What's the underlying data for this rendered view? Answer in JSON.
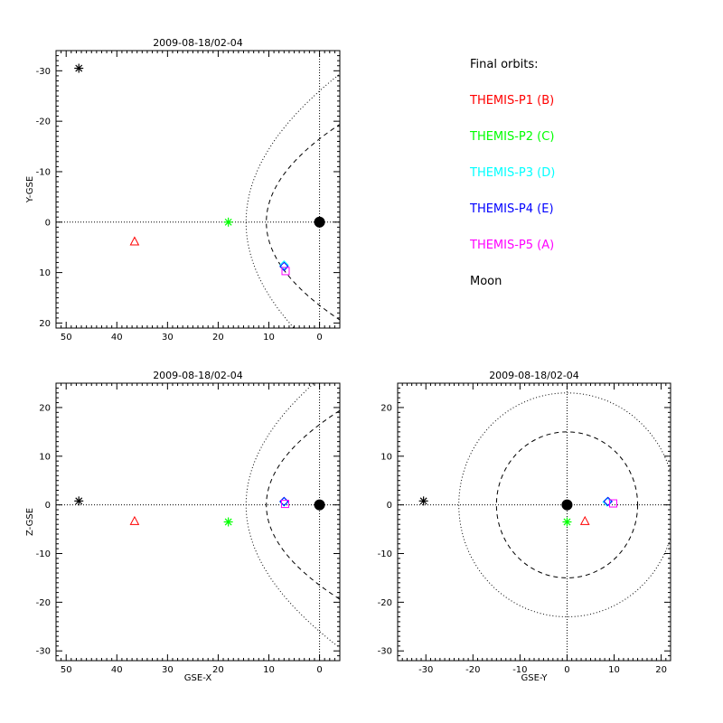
{
  "legend": {
    "title": "Final orbits:",
    "items": [
      {
        "label": "THEMIS-P1 (B)",
        "color": "#ff0000"
      },
      {
        "label": "THEMIS-P2 (C)",
        "color": "#00ff00"
      },
      {
        "label": "THEMIS-P3 (D)",
        "color": "#00ffff"
      },
      {
        "label": "THEMIS-P4 (E)",
        "color": "#0000ff"
      },
      {
        "label": "THEMIS-P5 (A)",
        "color": "#ff00ff"
      },
      {
        "label": "Moon",
        "color": "#000000"
      }
    ]
  },
  "chart_data": [
    {
      "type": "scatter",
      "title": "2009-08-18/02-04",
      "xlabel": "",
      "ylabel": "Y-GSE",
      "xlim": [
        52,
        -4
      ],
      "ylim": [
        21,
        -34
      ],
      "xticks": [
        50,
        40,
        30,
        20,
        10,
        0
      ],
      "yticks": [
        20,
        10,
        0,
        -10,
        -20,
        -30
      ],
      "boundaries": [
        {
          "name": "magnetopause",
          "style": "dashed",
          "subsolar": 10.5,
          "flank": 16.5
        },
        {
          "name": "bow shock",
          "style": "dotted",
          "subsolar": 14.5,
          "flank": 26.0
        }
      ],
      "origin_lines": true,
      "earth": [
        0,
        0
      ],
      "points": [
        {
          "name": "THEMIS-P1 (B)",
          "x": 36.5,
          "y": 3.8,
          "marker": "triangle",
          "color": "#ff0000"
        },
        {
          "name": "THEMIS-P2 (C)",
          "x": 18.0,
          "y": 0.0,
          "marker": "asterisk",
          "color": "#00ff00"
        },
        {
          "name": "THEMIS-P3 (D)",
          "x": 7.0,
          "y": 8.5,
          "marker": "diamond",
          "color": "#00ffff"
        },
        {
          "name": "THEMIS-P4 (E)",
          "x": 7.0,
          "y": 8.8,
          "marker": "diamond",
          "color": "#0000ff"
        },
        {
          "name": "THEMIS-P5 (A)",
          "x": 6.7,
          "y": 9.7,
          "marker": "square",
          "color": "#ff00ff"
        },
        {
          "name": "Moon",
          "x": 47.5,
          "y": -30.5,
          "marker": "asterisk",
          "color": "#000000"
        }
      ]
    },
    {
      "type": "scatter",
      "title": "2009-08-18/02-04",
      "xlabel": "GSE-X",
      "ylabel": "Z-GSE",
      "xlim": [
        52,
        -4
      ],
      "ylim": [
        -32,
        25
      ],
      "xticks": [
        50,
        40,
        30,
        20,
        10,
        0
      ],
      "yticks": [
        20,
        10,
        0,
        -10,
        -20,
        -30
      ],
      "boundaries": [
        {
          "name": "magnetopause",
          "style": "dashed",
          "subsolar": 10.5,
          "flank": 16.5
        },
        {
          "name": "bow shock",
          "style": "dotted",
          "subsolar": 14.5,
          "flank": 26.0
        }
      ],
      "origin_lines": true,
      "earth": [
        0,
        0
      ],
      "points": [
        {
          "name": "THEMIS-P1 (B)",
          "x": 36.5,
          "y": -3.3,
          "marker": "triangle",
          "color": "#ff0000"
        },
        {
          "name": "THEMIS-P2 (C)",
          "x": 18.0,
          "y": -3.5,
          "marker": "asterisk",
          "color": "#00ff00"
        },
        {
          "name": "THEMIS-P3 (D)",
          "x": 7.0,
          "y": 0.6,
          "marker": "diamond",
          "color": "#00ffff"
        },
        {
          "name": "THEMIS-P4 (E)",
          "x": 7.0,
          "y": 0.7,
          "marker": "diamond",
          "color": "#0000ff"
        },
        {
          "name": "THEMIS-P5 (A)",
          "x": 6.8,
          "y": 0.2,
          "marker": "square",
          "color": "#ff00ff"
        },
        {
          "name": "Moon",
          "x": 47.5,
          "y": 0.8,
          "marker": "asterisk",
          "color": "#000000"
        }
      ]
    },
    {
      "type": "scatter",
      "title": "2009-08-18/02-04",
      "xlabel": "GSE-Y",
      "ylabel": "",
      "xlim": [
        -36,
        22
      ],
      "ylim": [
        -32,
        25
      ],
      "xticks": [
        -30,
        -20,
        -10,
        0,
        10,
        20
      ],
      "yticks": [
        20,
        10,
        0,
        -10,
        -20,
        -30
      ],
      "circles": [
        {
          "name": "magnetopause",
          "style": "dashed",
          "radius": 15
        },
        {
          "name": "bow shock",
          "style": "dotted",
          "radius": 23
        }
      ],
      "origin_lines": true,
      "earth": [
        0,
        0
      ],
      "points": [
        {
          "name": "THEMIS-P1 (B)",
          "x": 3.8,
          "y": -3.3,
          "marker": "triangle",
          "color": "#ff0000"
        },
        {
          "name": "THEMIS-P2 (C)",
          "x": 0.0,
          "y": -3.5,
          "marker": "asterisk",
          "color": "#00ff00"
        },
        {
          "name": "THEMIS-P3 (D)",
          "x": 8.5,
          "y": 0.6,
          "marker": "diamond",
          "color": "#00ffff"
        },
        {
          "name": "THEMIS-P4 (E)",
          "x": 8.7,
          "y": 0.7,
          "marker": "diamond",
          "color": "#0000ff"
        },
        {
          "name": "THEMIS-P5 (A)",
          "x": 9.8,
          "y": 0.3,
          "marker": "square",
          "color": "#ff00ff"
        },
        {
          "name": "Moon",
          "x": -30.5,
          "y": 0.8,
          "marker": "asterisk",
          "color": "#000000"
        }
      ]
    }
  ]
}
